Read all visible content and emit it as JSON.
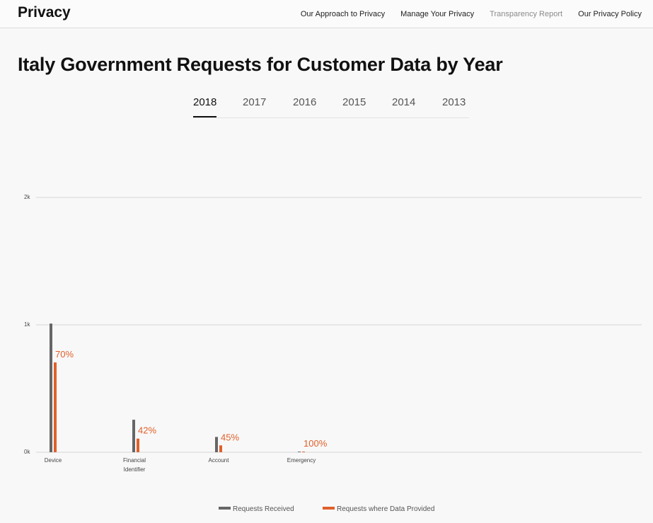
{
  "header": {
    "brand": "Privacy",
    "links": [
      {
        "label": "Our Approach to Privacy"
      },
      {
        "label": "Manage Your Privacy"
      },
      {
        "label": "Transparency Report"
      },
      {
        "label": "Our Privacy Policy"
      }
    ]
  },
  "page_title": "Italy Government Requests for Customer Data by Year",
  "year_tabs": [
    "2018",
    "2017",
    "2016",
    "2015",
    "2014",
    "2013"
  ],
  "selected_year": "2018",
  "colors": {
    "received": "#666666",
    "provided": "#e0602a",
    "grid": "#d6d6d6"
  },
  "chart_data": {
    "type": "bar",
    "categories": [
      "Device",
      "Financial Identifier",
      "Account",
      "Emergency"
    ],
    "series": [
      {
        "name": "Requests Received",
        "values": [
          1010,
          255,
          120,
          5
        ]
      },
      {
        "name": "Requests where Data Provided",
        "values": [
          705,
          107,
          54,
          5
        ]
      }
    ],
    "percent_labels": [
      "70%",
      "42%",
      "45%",
      "100%"
    ],
    "yticks": [
      "0k",
      "1k",
      "2k"
    ],
    "ytick_values": [
      0,
      1000,
      2000
    ],
    "ylim": [
      0,
      2000
    ],
    "grid": true,
    "legend_position": "bottom"
  }
}
